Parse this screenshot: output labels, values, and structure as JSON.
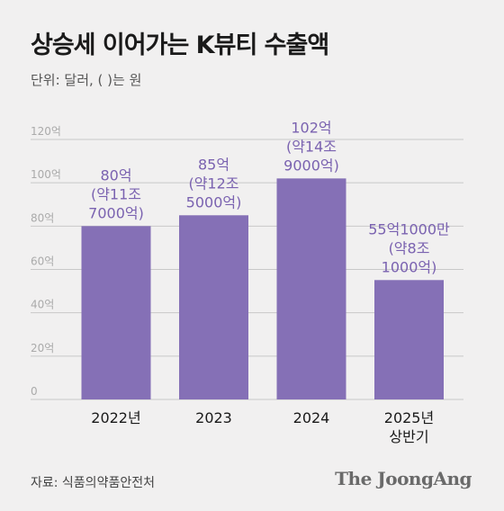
{
  "title": "상승세 이어가는 K뷰티 수출액",
  "unit_note": "단위: 달러, ( )는 원",
  "source": "자료: 식품의약품안전처",
  "publisher": "The JoongAng",
  "colors": {
    "bar": "#8570b6",
    "label": "#7a62b0",
    "background": "#f1f0f0"
  },
  "chart_data": {
    "type": "bar",
    "categories": [
      [
        "2022년"
      ],
      [
        "2023"
      ],
      [
        "2024"
      ],
      [
        "2025년",
        "상반기"
      ]
    ],
    "values": [
      80,
      85,
      102,
      55.1
    ],
    "data_labels": [
      [
        "80억",
        "(약11조",
        "7000억)"
      ],
      [
        "85억",
        "(약12조",
        "5000억)"
      ],
      [
        "102억",
        "(약14조",
        "9000억)"
      ],
      [
        "55억1000만",
        "(약8조",
        "1000억)"
      ]
    ],
    "y_ticks": [
      "0",
      "20억",
      "40억",
      "60억",
      "80억",
      "100억",
      "120억"
    ],
    "y_tick_values": [
      0,
      20,
      40,
      60,
      80,
      100,
      120
    ],
    "ylim": [
      0,
      120
    ],
    "grid": true,
    "legend": "none"
  }
}
